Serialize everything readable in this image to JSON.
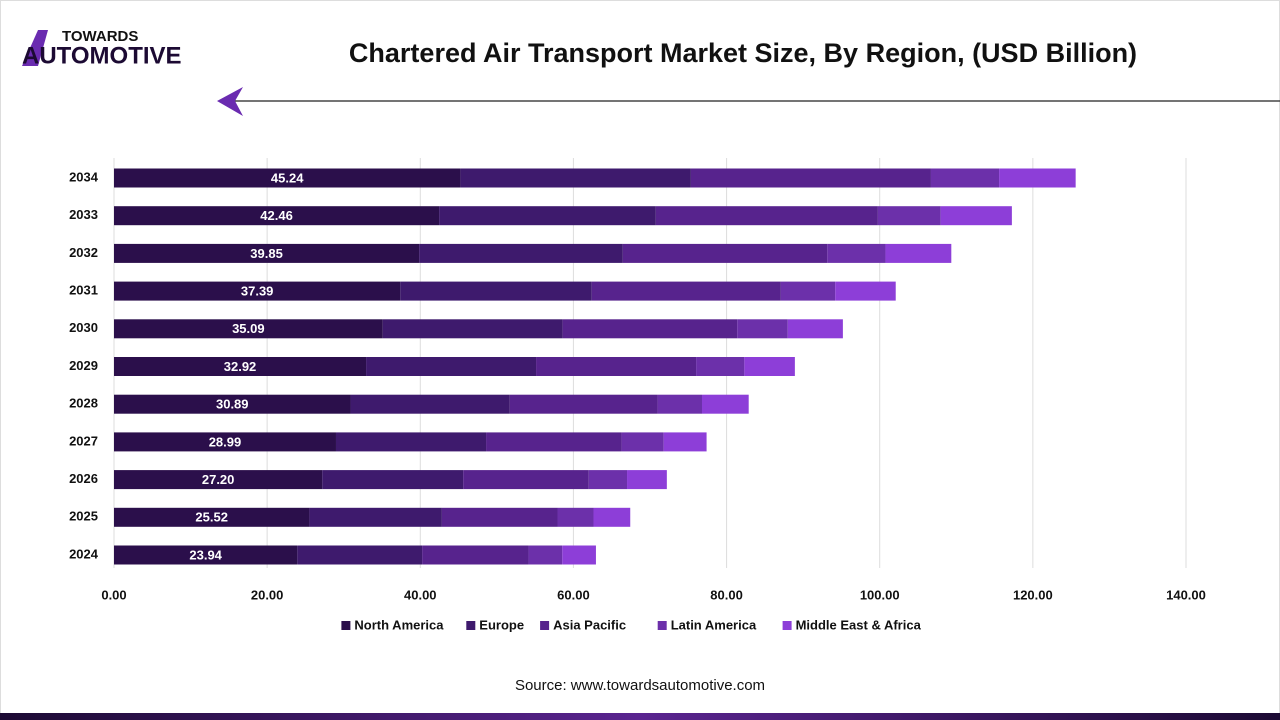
{
  "brand": {
    "line1": "TOWARDS",
    "line2": "AUTOMOTIVE"
  },
  "source": "Source: www.towardsautomotive.com",
  "chart_data": {
    "type": "stacked-bar-horizontal",
    "title": "Chartered Air Transport Market Size, By Region, (USD Billion)",
    "categories": [
      "2024",
      "2025",
      "2026",
      "2027",
      "2028",
      "2029",
      "2030",
      "2031",
      "2032",
      "2033",
      "2034"
    ],
    "series": [
      {
        "name": "North America",
        "color": "#2b0f4b",
        "values": [
          23.94,
          25.52,
          27.2,
          28.99,
          30.89,
          32.92,
          35.09,
          37.39,
          39.85,
          42.46,
          45.24
        ],
        "value_labels": [
          "23.94",
          "25.52",
          "27.20",
          "28.99",
          "30.89",
          "32.92",
          "35.09",
          "37.39",
          "39.85",
          "42.46",
          "45.24"
        ]
      },
      {
        "name": "Europe",
        "color": "#3e1a6d",
        "values": [
          16.3,
          17.3,
          18.4,
          19.6,
          20.8,
          22.2,
          23.5,
          25.0,
          26.6,
          28.3,
          30.1
        ]
      },
      {
        "name": "Asia Pacific",
        "color": "#57238d",
        "values": [
          13.9,
          15.1,
          16.4,
          17.7,
          19.3,
          20.9,
          22.8,
          24.7,
          26.7,
          29.0,
          31.35
        ]
      },
      {
        "name": "Latin America",
        "color": "#6c30aa",
        "values": [
          4.4,
          4.7,
          5.0,
          5.5,
          5.8,
          6.3,
          6.6,
          7.1,
          7.6,
          8.2,
          8.9
        ]
      },
      {
        "name": "Middle East & Africa",
        "color": "#8d3ed8",
        "values": [
          4.4,
          4.8,
          5.2,
          5.6,
          6.1,
          6.6,
          7.2,
          7.9,
          8.6,
          9.3,
          10.0
        ]
      }
    ],
    "xlim": [
      0,
      140
    ],
    "xticks": [
      {
        "value": 0,
        "label": "0.00"
      },
      {
        "value": 20,
        "label": "20.00"
      },
      {
        "value": 40,
        "label": "40.00"
      },
      {
        "value": 60,
        "label": "60.00"
      },
      {
        "value": 80,
        "label": "80.00"
      },
      {
        "value": 100,
        "label": "100.00"
      },
      {
        "value": 120,
        "label": "120.00"
      },
      {
        "value": 140,
        "label": "140.00"
      }
    ],
    "grid": true,
    "legend": "bottom"
  }
}
